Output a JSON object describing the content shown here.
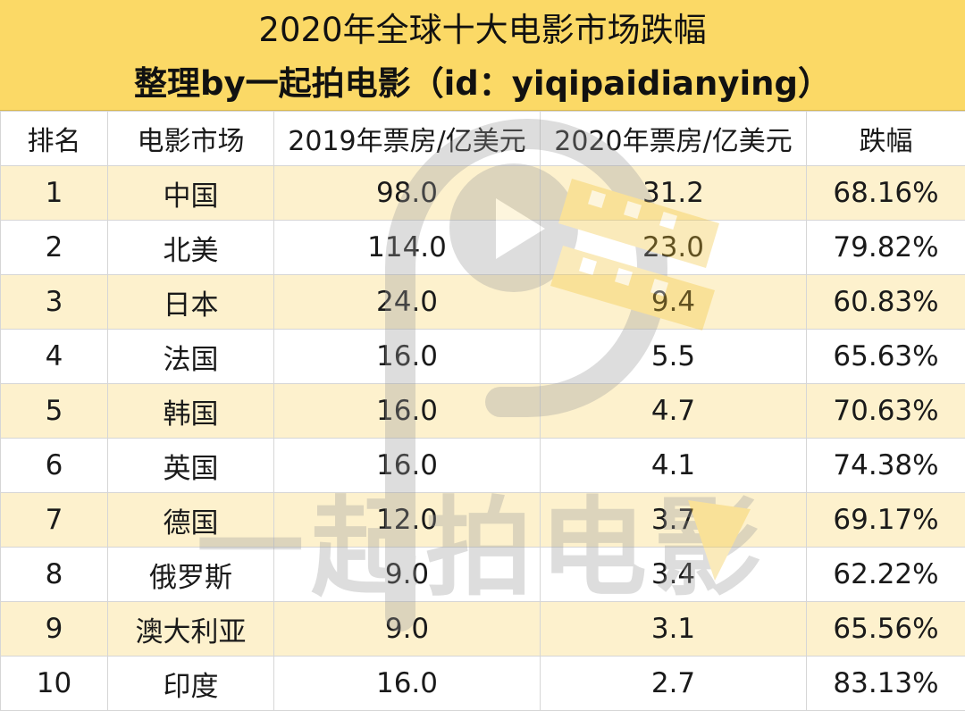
{
  "title": {
    "line1": "2020年全球十大电影市场跌幅",
    "line2": "整理by一起拍电影（id：yiqipaidianying）"
  },
  "table": {
    "headers": [
      "排名",
      "电影市场",
      "2019年票房/亿美元",
      "2020年票房/亿美元",
      "跌幅"
    ],
    "rows": [
      [
        "1",
        "中国",
        "98.0",
        "31.2",
        "68.16%"
      ],
      [
        "2",
        "北美",
        "114.0",
        "23.0",
        "79.82%"
      ],
      [
        "3",
        "日本",
        "24.0",
        "9.4",
        "60.83%"
      ],
      [
        "4",
        "法国",
        "16.0",
        "5.5",
        "65.63%"
      ],
      [
        "5",
        "韩国",
        "16.0",
        "4.7",
        "70.63%"
      ],
      [
        "6",
        "英国",
        "16.0",
        "4.1",
        "74.38%"
      ],
      [
        "7",
        "德国",
        "12.0",
        "3.7",
        "69.17%"
      ],
      [
        "8",
        "俄罗斯",
        "9.0",
        "3.4",
        "62.22%"
      ],
      [
        "9",
        "澳大利亚",
        "9.0",
        "3.1",
        "65.56%"
      ],
      [
        "10",
        "印度",
        "16.0",
        "2.7",
        "83.13%"
      ]
    ]
  },
  "watermark": {
    "text": "一起拍电影",
    "icon": "play-button-logo-icon",
    "colors": {
      "gray": "#9a9a9a",
      "yellow": "#f2c230"
    }
  },
  "colors": {
    "title_bg": "#fbd966",
    "row_stripe": "#fdf1cd",
    "grid_line": "#d6d6d6"
  }
}
